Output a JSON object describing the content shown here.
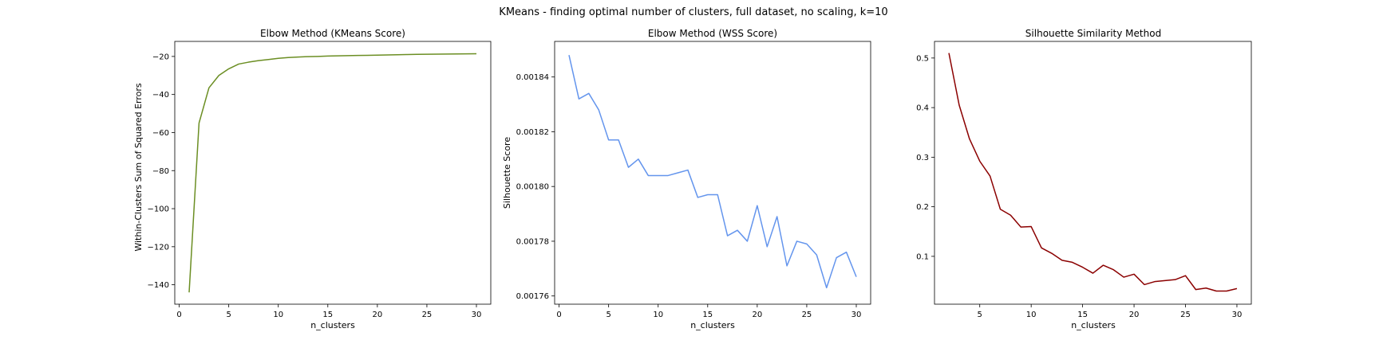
{
  "figure": {
    "suptitle": "KMeans - finding optimal number of clusters, full dataset, no scaling, k=10"
  },
  "chart_data": [
    {
      "type": "line",
      "title": "Elbow Method (KMeans Score)",
      "xlabel": "n_clusters",
      "ylabel": "Within-Clusters Sum of Squared Errors",
      "color": "#6b8e23",
      "xlim": [
        -0.45,
        31.45
      ],
      "ylim": [
        -150.2,
        -12.1
      ],
      "xticks": [
        0,
        5,
        10,
        15,
        20,
        25,
        30
      ],
      "yticks": [
        -140,
        -120,
        -100,
        -80,
        -60,
        -40,
        -20
      ],
      "ytick_labels": [
        "−140",
        "−120",
        "−100",
        "−80",
        "−60",
        "−40",
        "−20"
      ],
      "x": [
        1,
        2,
        3,
        4,
        5,
        6,
        7,
        8,
        9,
        10,
        11,
        12,
        13,
        14,
        15,
        16,
        17,
        18,
        19,
        20,
        21,
        22,
        23,
        24,
        25,
        26,
        27,
        28,
        29,
        30
      ],
      "y": [
        -144,
        -55,
        -36.5,
        -30,
        -26.5,
        -24,
        -23,
        -22.2,
        -21.6,
        -21,
        -20.6,
        -20.3,
        -20.1,
        -20,
        -19.8,
        -19.7,
        -19.6,
        -19.5,
        -19.4,
        -19.3,
        -19.2,
        -19.1,
        -19.0,
        -18.9,
        -18.85,
        -18.8,
        -18.75,
        -18.7,
        -18.65,
        -18.6
      ]
    },
    {
      "type": "line",
      "title": "Elbow Method (WSS Score)",
      "xlabel": "n_clusters",
      "ylabel": "Silhouette Score",
      "color": "#6495ed",
      "xlim": [
        -0.45,
        31.45
      ],
      "ylim": [
        0.001757,
        0.001853
      ],
      "xticks": [
        0,
        5,
        10,
        15,
        20,
        25,
        30
      ],
      "yticks": [
        0.00176,
        0.00178,
        0.0018,
        0.00182,
        0.00184
      ],
      "ytick_labels": [
        "0.00176",
        "0.00178",
        "0.00180",
        "0.00182",
        "0.00184"
      ],
      "x": [
        1,
        2,
        3,
        4,
        5,
        6,
        7,
        8,
        9,
        10,
        11,
        12,
        13,
        14,
        15,
        16,
        17,
        18,
        19,
        20,
        21,
        22,
        23,
        24,
        25,
        26,
        27,
        28,
        29,
        30
      ],
      "y": [
        0.001848,
        0.001832,
        0.001834,
        0.001828,
        0.001817,
        0.001817,
        0.001807,
        0.00181,
        0.001804,
        0.001804,
        0.001804,
        0.001805,
        0.001806,
        0.001796,
        0.001797,
        0.001797,
        0.001782,
        0.001784,
        0.00178,
        0.001793,
        0.001778,
        0.001789,
        0.001771,
        0.00178,
        0.001779,
        0.001775,
        0.001763,
        0.001774,
        0.001776,
        0.001767
      ]
    },
    {
      "type": "line",
      "title": "Silhouette Similarity Method",
      "xlabel": "n_clusters",
      "ylabel": "",
      "color": "#8b0000",
      "xlim": [
        0.6,
        31.4
      ],
      "ylim": [
        0.0035,
        0.5335
      ],
      "xticks": [
        5,
        10,
        15,
        20,
        25,
        30
      ],
      "yticks": [
        0.1,
        0.2,
        0.3,
        0.4,
        0.5
      ],
      "ytick_labels": [
        "0.1",
        "0.2",
        "0.3",
        "0.4",
        "0.5"
      ],
      "x": [
        2,
        3,
        4,
        5,
        6,
        7,
        8,
        9,
        10,
        11,
        12,
        13,
        14,
        15,
        16,
        17,
        18,
        19,
        20,
        21,
        22,
        23,
        24,
        25,
        26,
        27,
        28,
        29,
        30
      ],
      "y": [
        0.51,
        0.405,
        0.337,
        0.292,
        0.262,
        0.195,
        0.183,
        0.159,
        0.16,
        0.117,
        0.106,
        0.092,
        0.088,
        0.078,
        0.066,
        0.082,
        0.073,
        0.058,
        0.064,
        0.043,
        0.049,
        0.051,
        0.053,
        0.061,
        0.033,
        0.036,
        0.03,
        0.03,
        0.035
      ]
    }
  ]
}
